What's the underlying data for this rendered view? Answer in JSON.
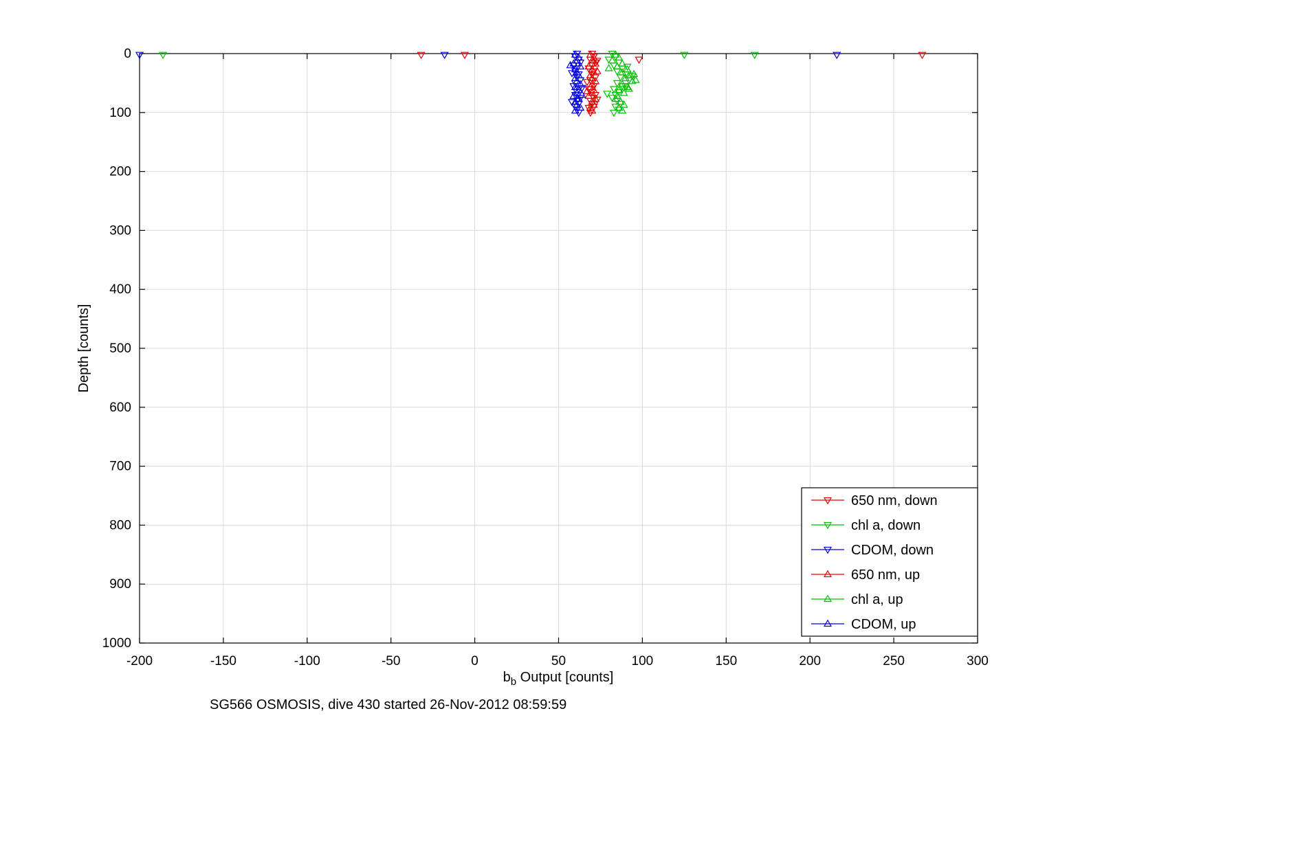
{
  "figure": {
    "caption": "SG566 OSMOSIS, dive 430 started 26-Nov-2012 08:59:59",
    "ylabel": "Depth [counts]",
    "xlabel_parts": {
      "prefix": "b",
      "sub": "b",
      "rest": " Output [counts]"
    }
  },
  "chart_data": {
    "type": "scatter",
    "title": "SG566 OSMOSIS, dive 430 started 26-Nov-2012 08:59:59",
    "xlabel": "b_b Output [counts]",
    "ylabel": "Depth [counts]",
    "xlim": [
      -200,
      300
    ],
    "ylim": [
      0,
      1000
    ],
    "y_inverted": true,
    "grid": true,
    "legend_position": "lower right",
    "xticks": [
      -200,
      -150,
      -100,
      -50,
      0,
      50,
      100,
      150,
      200,
      250,
      300
    ],
    "yticks": [
      0,
      100,
      200,
      300,
      400,
      500,
      600,
      700,
      800,
      900,
      1000
    ],
    "marker_colors": {
      "red": "#e60000",
      "green": "#00c000",
      "blue": "#0000e0"
    },
    "series": [
      {
        "name": "650 nm, down",
        "color": "#e60000",
        "marker": "triangle-down",
        "points": [
          [
            -32,
            2
          ],
          [
            -6,
            2
          ],
          [
            98,
            10
          ],
          [
            267,
            2
          ],
          [
            70,
            0
          ],
          [
            71,
            5
          ],
          [
            69,
            10
          ],
          [
            72,
            15
          ],
          [
            70,
            20
          ],
          [
            68,
            25
          ],
          [
            71,
            30
          ],
          [
            70,
            35
          ],
          [
            72,
            40
          ],
          [
            69,
            45
          ],
          [
            70,
            50
          ],
          [
            71,
            55
          ],
          [
            68,
            60
          ],
          [
            70,
            65
          ],
          [
            72,
            70
          ],
          [
            71,
            75
          ],
          [
            69,
            80
          ],
          [
            70,
            85
          ],
          [
            71,
            90
          ],
          [
            70,
            95
          ],
          [
            69,
            100
          ],
          [
            73,
            12
          ],
          [
            67,
            48
          ],
          [
            73,
            78
          ],
          [
            68,
            92
          ]
        ]
      },
      {
        "name": "chl a, down",
        "color": "#00c000",
        "marker": "triangle-down",
        "points": [
          [
            -186,
            2
          ],
          [
            125,
            2
          ],
          [
            167,
            2
          ],
          [
            82,
            0
          ],
          [
            84,
            5
          ],
          [
            80,
            10
          ],
          [
            86,
            15
          ],
          [
            83,
            20
          ],
          [
            88,
            25
          ],
          [
            85,
            30
          ],
          [
            90,
            35
          ],
          [
            87,
            40
          ],
          [
            92,
            45
          ],
          [
            85,
            50
          ],
          [
            88,
            55
          ],
          [
            83,
            60
          ],
          [
            86,
            65
          ],
          [
            84,
            70
          ],
          [
            82,
            75
          ],
          [
            85,
            80
          ],
          [
            87,
            85
          ],
          [
            84,
            90
          ],
          [
            86,
            95
          ],
          [
            83,
            100
          ],
          [
            91,
            22
          ],
          [
            94,
            38
          ],
          [
            90,
            55
          ],
          [
            79,
            68
          ]
        ]
      },
      {
        "name": "CDOM, down",
        "color": "#0000e0",
        "marker": "triangle-down",
        "points": [
          [
            -200,
            2
          ],
          [
            -18,
            2
          ],
          [
            216,
            2
          ],
          [
            61,
            0
          ],
          [
            60,
            5
          ],
          [
            62,
            10
          ],
          [
            63,
            15
          ],
          [
            59,
            20
          ],
          [
            61,
            25
          ],
          [
            60,
            30
          ],
          [
            62,
            35
          ],
          [
            61,
            40
          ],
          [
            63,
            45
          ],
          [
            60,
            50
          ],
          [
            59,
            55
          ],
          [
            62,
            60
          ],
          [
            61,
            65
          ],
          [
            60,
            70
          ],
          [
            63,
            75
          ],
          [
            61,
            80
          ],
          [
            62,
            85
          ],
          [
            60,
            90
          ],
          [
            61,
            95
          ],
          [
            62,
            100
          ],
          [
            58,
            33
          ],
          [
            64,
            58
          ],
          [
            58,
            82
          ]
        ]
      },
      {
        "name": "650 nm, up",
        "color": "#e60000",
        "marker": "triangle-up",
        "points": [
          [
            69,
            2
          ],
          [
            71,
            7
          ],
          [
            70,
            12
          ],
          [
            72,
            17
          ],
          [
            68,
            22
          ],
          [
            70,
            27
          ],
          [
            71,
            32
          ],
          [
            69,
            37
          ],
          [
            70,
            42
          ],
          [
            72,
            47
          ],
          [
            70,
            52
          ],
          [
            69,
            57
          ],
          [
            71,
            62
          ],
          [
            70,
            67
          ],
          [
            68,
            72
          ],
          [
            72,
            77
          ],
          [
            70,
            82
          ],
          [
            71,
            87
          ],
          [
            69,
            92
          ],
          [
            70,
            97
          ],
          [
            73,
            30
          ],
          [
            67,
            64
          ]
        ]
      },
      {
        "name": "chl a, up",
        "color": "#00c000",
        "marker": "triangle-up",
        "points": [
          [
            84,
            2
          ],
          [
            86,
            7
          ],
          [
            82,
            12
          ],
          [
            88,
            17
          ],
          [
            85,
            22
          ],
          [
            91,
            27
          ],
          [
            88,
            32
          ],
          [
            93,
            37
          ],
          [
            90,
            42
          ],
          [
            94,
            47
          ],
          [
            88,
            52
          ],
          [
            91,
            57
          ],
          [
            86,
            62
          ],
          [
            89,
            67
          ],
          [
            85,
            72
          ],
          [
            84,
            77
          ],
          [
            87,
            82
          ],
          [
            89,
            87
          ],
          [
            86,
            92
          ],
          [
            88,
            97
          ],
          [
            95,
            35
          ],
          [
            96,
            45
          ],
          [
            92,
            60
          ],
          [
            80,
            25
          ]
        ]
      },
      {
        "name": "CDOM, up",
        "color": "#0000e0",
        "marker": "triangle-up",
        "points": [
          [
            60,
            2
          ],
          [
            62,
            7
          ],
          [
            61,
            12
          ],
          [
            59,
            17
          ],
          [
            63,
            22
          ],
          [
            60,
            27
          ],
          [
            61,
            32
          ],
          [
            62,
            37
          ],
          [
            60,
            42
          ],
          [
            61,
            47
          ],
          [
            63,
            52
          ],
          [
            60,
            57
          ],
          [
            62,
            62
          ],
          [
            61,
            67
          ],
          [
            59,
            72
          ],
          [
            62,
            77
          ],
          [
            60,
            82
          ],
          [
            61,
            87
          ],
          [
            63,
            92
          ],
          [
            60,
            97
          ],
          [
            57,
            20
          ],
          [
            64,
            70
          ]
        ]
      }
    ]
  }
}
